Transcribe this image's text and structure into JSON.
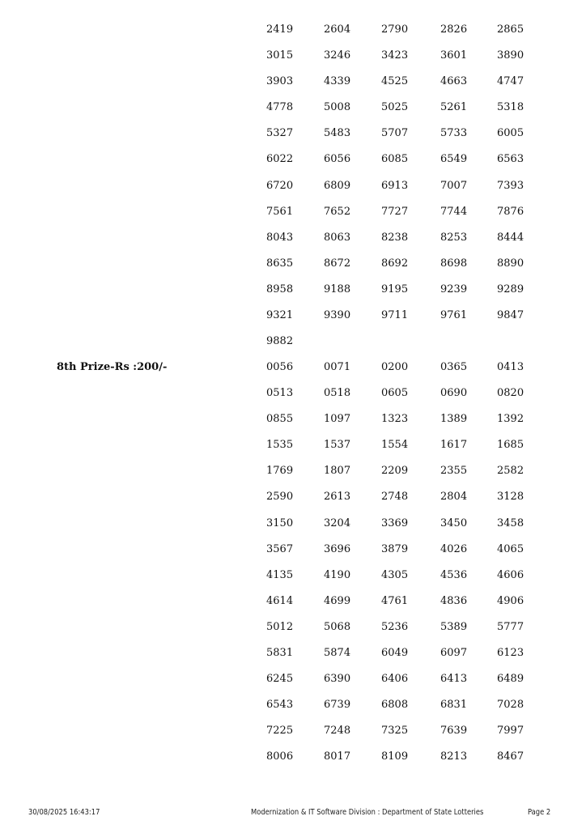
{
  "sections": [
    {
      "label": "",
      "numbers": [
        "2419",
        "2604",
        "2790",
        "2826",
        "2865",
        "3015",
        "3246",
        "3423",
        "3601",
        "3890",
        "3903",
        "4339",
        "4525",
        "4663",
        "4747",
        "4778",
        "5008",
        "5025",
        "5261",
        "5318",
        "5327",
        "5483",
        "5707",
        "5733",
        "6005",
        "6022",
        "6056",
        "6085",
        "6549",
        "6563",
        "6720",
        "6809",
        "6913",
        "7007",
        "7393",
        "7561",
        "7652",
        "7727",
        "7744",
        "7876",
        "8043",
        "8063",
        "8238",
        "8253",
        "8444",
        "8635",
        "8672",
        "8692",
        "8698",
        "8890",
        "8958",
        "9188",
        "9195",
        "9239",
        "9289",
        "9321",
        "9390",
        "9711",
        "9761",
        "9847",
        "9882"
      ]
    },
    {
      "label": "8th Prize-Rs :200/-",
      "numbers": [
        "0056",
        "0071",
        "0200",
        "0365",
        "0413",
        "0513",
        "0518",
        "0605",
        "0690",
        "0820",
        "0855",
        "1097",
        "1323",
        "1389",
        "1392",
        "1535",
        "1537",
        "1554",
        "1617",
        "1685",
        "1769",
        "1807",
        "2209",
        "2355",
        "2582",
        "2590",
        "2613",
        "2748",
        "2804",
        "3128",
        "3150",
        "3204",
        "3369",
        "3450",
        "3458",
        "3567",
        "3696",
        "3879",
        "4026",
        "4065",
        "4135",
        "4190",
        "4305",
        "4536",
        "4606",
        "4614",
        "4699",
        "4761",
        "4836",
        "4906",
        "5012",
        "5068",
        "5236",
        "5389",
        "5777",
        "5831",
        "5874",
        "6049",
        "6097",
        "6123",
        "6245",
        "6390",
        "6406",
        "6413",
        "6489",
        "6543",
        "6739",
        "6808",
        "6831",
        "7028",
        "7225",
        "7248",
        "7325",
        "7639",
        "7997",
        "8006",
        "8017",
        "8109",
        "8213",
        "8467"
      ]
    }
  ],
  "footer": {
    "timestamp": "30/08/2025 16:43:17",
    "division": "Modernization & IT Software Division : Department of State Lotteries",
    "page": "Page 2"
  }
}
